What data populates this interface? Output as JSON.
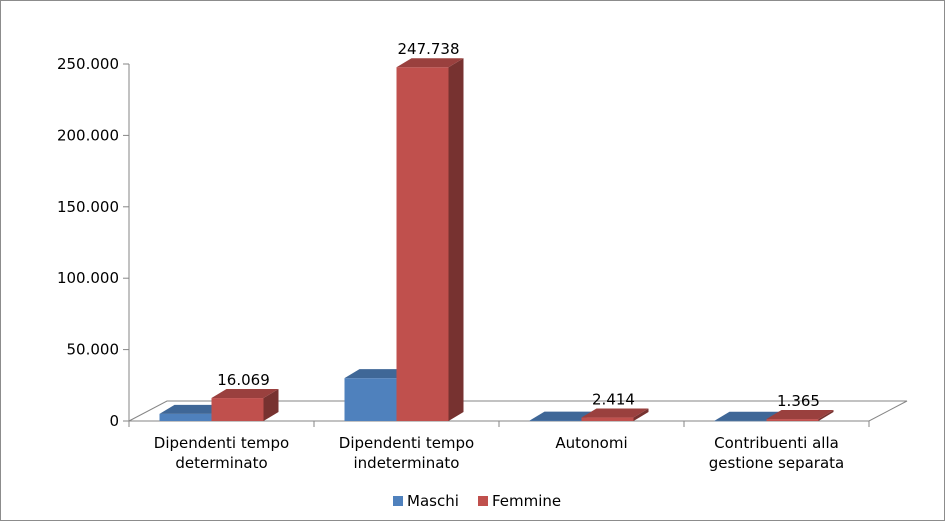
{
  "chart_data": {
    "type": "bar",
    "title": "",
    "xlabel": "",
    "ylabel": "",
    "ylim": [
      0,
      250000
    ],
    "yticks": [
      "0",
      "50.000",
      "100.000",
      "150.000",
      "200.000",
      "250.000"
    ],
    "ytick_values": [
      0,
      50000,
      100000,
      150000,
      200000,
      250000
    ],
    "categories": [
      [
        "Dipendenti tempo",
        "determinato"
      ],
      [
        "Dipendenti tempo",
        "indeterminato"
      ],
      [
        "Autonomi"
      ],
      [
        "Contribuenti alla",
        "gestione separata"
      ]
    ],
    "series": [
      {
        "name": "Maschi",
        "color": "#4f81bd",
        "values": [
          5000,
          30000,
          300,
          200
        ]
      },
      {
        "name": "Femmine",
        "color": "#c0504d",
        "values": [
          16069,
          247738,
          2414,
          1365
        ]
      }
    ],
    "data_labels": [
      {
        "series": 1,
        "index": 0,
        "text": "16.069"
      },
      {
        "series": 1,
        "index": 1,
        "text": "247.738"
      },
      {
        "series": 1,
        "index": 2,
        "text": "2.414"
      },
      {
        "series": 1,
        "index": 3,
        "text": "1.365"
      }
    ],
    "legend_position": "bottom",
    "grid": false,
    "style": "3d-column"
  }
}
